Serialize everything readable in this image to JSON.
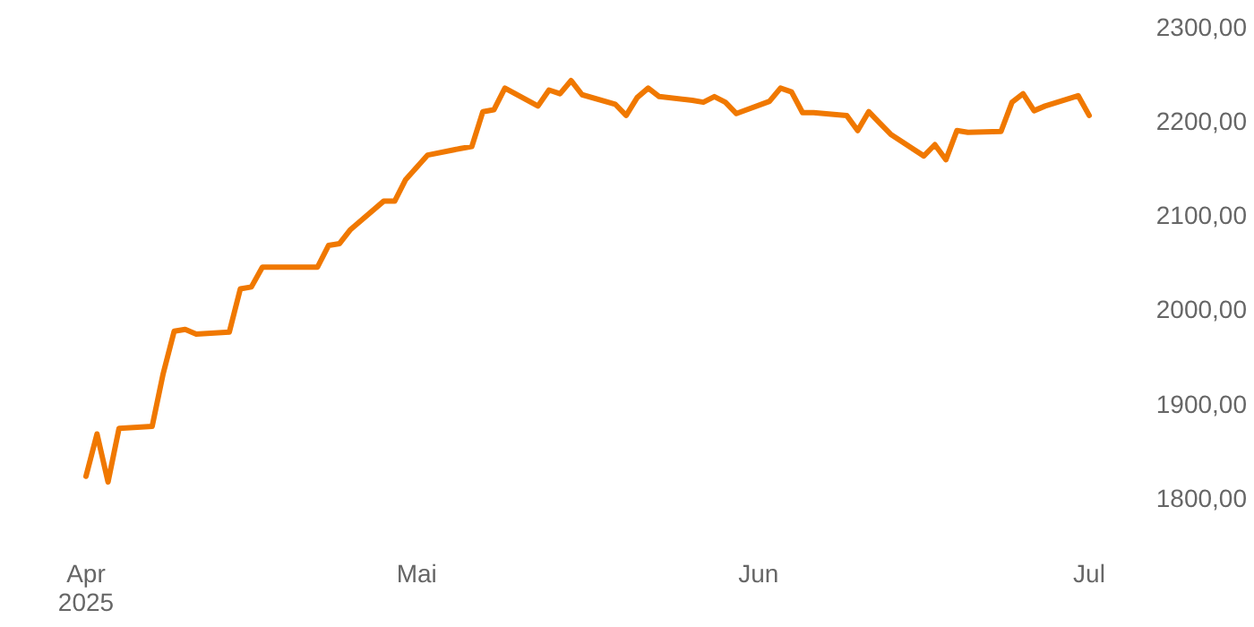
{
  "chart_data": {
    "type": "line",
    "x": [
      "2025-04-01",
      "2025-04-02",
      "2025-04-03",
      "2025-04-04",
      "2025-04-07",
      "2025-04-08",
      "2025-04-09",
      "2025-04-10",
      "2025-04-11",
      "2025-04-14",
      "2025-04-15",
      "2025-04-16",
      "2025-04-17",
      "2025-04-22",
      "2025-04-23",
      "2025-04-24",
      "2025-04-25",
      "2025-04-28",
      "2025-04-29",
      "2025-04-30",
      "2025-05-02",
      "2025-05-05",
      "2025-05-06",
      "2025-05-07",
      "2025-05-08",
      "2025-05-09",
      "2025-05-12",
      "2025-05-13",
      "2025-05-14",
      "2025-05-15",
      "2025-05-16",
      "2025-05-19",
      "2025-05-20",
      "2025-05-21",
      "2025-05-22",
      "2025-05-23",
      "2025-05-26",
      "2025-05-27",
      "2025-05-28",
      "2025-05-29",
      "2025-05-30",
      "2025-06-02",
      "2025-06-03",
      "2025-06-04",
      "2025-06-05",
      "2025-06-06",
      "2025-06-09",
      "2025-06-10",
      "2025-06-11",
      "2025-06-12",
      "2025-06-13",
      "2025-06-16",
      "2025-06-17",
      "2025-06-18",
      "2025-06-19",
      "2025-06-20",
      "2025-06-23",
      "2025-06-24",
      "2025-06-25",
      "2025-06-26",
      "2025-06-27",
      "2025-06-30",
      "2025-07-01"
    ],
    "series": [
      {
        "color": "#f07800",
        "values": [
          1823,
          1868,
          1817,
          1874,
          1876,
          1932,
          1977,
          1979,
          1974,
          1976,
          2022,
          2024,
          2045,
          2045,
          2068,
          2070,
          2085,
          2115,
          2115,
          2138,
          2164,
          2171,
          2173,
          2210,
          2212,
          2235,
          2216,
          2233,
          2229,
          2243,
          2228,
          2218,
          2206,
          2225,
          2235,
          2226,
          2222,
          2220,
          2226,
          2220,
          2208,
          2221,
          2235,
          2231,
          2209,
          2209,
          2206,
          2190,
          2210,
          2198,
          2186,
          2163,
          2175,
          2159,
          2190,
          2188,
          2189,
          2220,
          2229,
          2211,
          2216,
          2227,
          2206
        ]
      }
    ],
    "xlim": [
      "2025-04-01",
      "2025-07-01"
    ],
    "xticks": [
      {
        "value": "2025-04-01",
        "label": "Apr\n2025"
      },
      {
        "value": "2025-05-01",
        "label": "Mai"
      },
      {
        "value": "2025-06-01",
        "label": "Jun"
      },
      {
        "value": "2025-07-01",
        "label": "Jul"
      }
    ],
    "ylim": [
      1800,
      2300
    ],
    "yticks": [
      {
        "value": 1800,
        "label": "1800,00"
      },
      {
        "value": 1900,
        "label": "1900,00"
      },
      {
        "value": 2000,
        "label": "2000,00"
      },
      {
        "value": 2100,
        "label": "2100,00"
      },
      {
        "value": 2200,
        "label": "2200,00"
      },
      {
        "value": 2300,
        "label": "2300,00"
      }
    ],
    "grid": false,
    "marker": "none",
    "line_style": "solid"
  }
}
